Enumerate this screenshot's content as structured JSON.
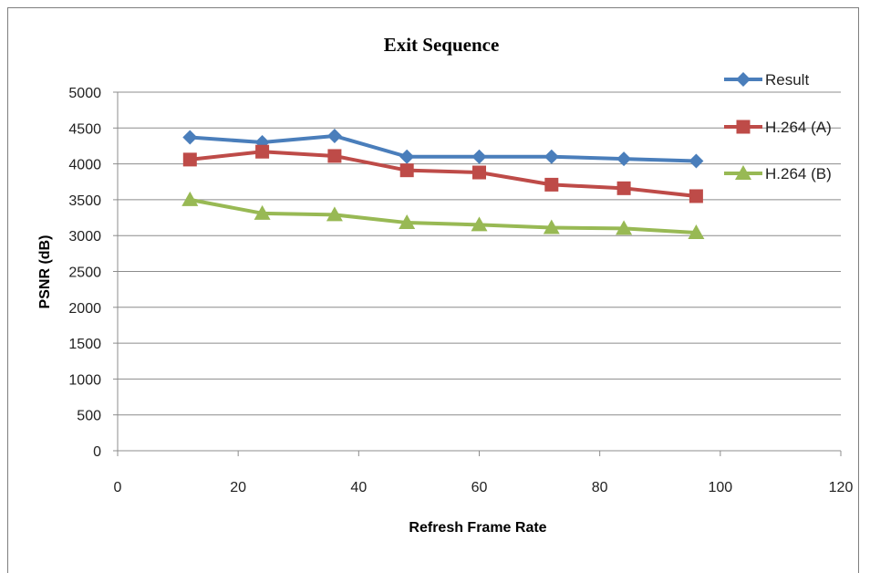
{
  "chart_data": {
    "type": "line",
    "title": "Exit Sequence",
    "xlabel": "Refresh Frame Rate",
    "ylabel": "PSNR (dB)",
    "xlim": [
      0,
      120
    ],
    "ylim": [
      0,
      5000
    ],
    "x_ticks": [
      "0",
      "20",
      "40",
      "60",
      "80",
      "100",
      "120"
    ],
    "y_ticks": [
      "0",
      "500",
      "1000",
      "1500",
      "2000",
      "2500",
      "3000",
      "3500",
      "4000",
      "4500",
      "5000"
    ],
    "grid": true,
    "legend_position": "top-right",
    "x": [
      12,
      24,
      36,
      48,
      60,
      72,
      84,
      96
    ],
    "series": [
      {
        "name": "Result",
        "color": "#4a7ebb",
        "marker": "diamond",
        "values": [
          4370,
          4300,
          4390,
          4100,
          4100,
          4100,
          4070,
          4040
        ]
      },
      {
        "name": "H.264 (A)",
        "color": "#be4b48",
        "marker": "square",
        "values": [
          4060,
          4170,
          4110,
          3910,
          3880,
          3710,
          3660,
          3550
        ]
      },
      {
        "name": "H.264 (B)",
        "color": "#98b954",
        "marker": "triangle",
        "values": [
          3500,
          3310,
          3290,
          3180,
          3150,
          3110,
          3100,
          3040
        ]
      }
    ]
  }
}
